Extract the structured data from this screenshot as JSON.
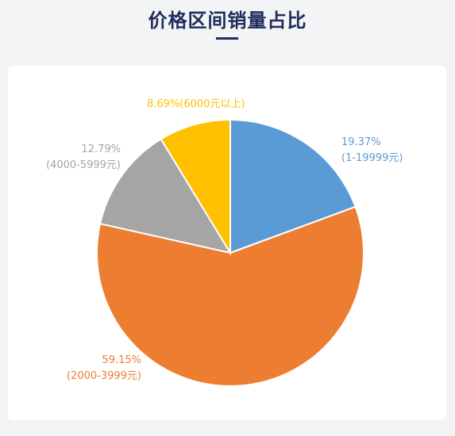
{
  "title": "价格区间销量占比",
  "chart_data": {
    "type": "pie",
    "title": "价格区间销量占比",
    "slices": [
      {
        "range": "(1-19999元)",
        "value": 19.37,
        "percent_label": "19.37%",
        "color": "#5b9bd5"
      },
      {
        "range": "(2000-3999元)",
        "value": 59.15,
        "percent_label": "59.15%",
        "color": "#ed7d31"
      },
      {
        "range": "(4000-5999元)",
        "value": 12.79,
        "percent_label": "12.79%",
        "color": "#a5a5a5"
      },
      {
        "range": "(6000元以上)",
        "value": 8.69,
        "percent_label": "8.69%",
        "color": "#ffc000"
      }
    ]
  }
}
